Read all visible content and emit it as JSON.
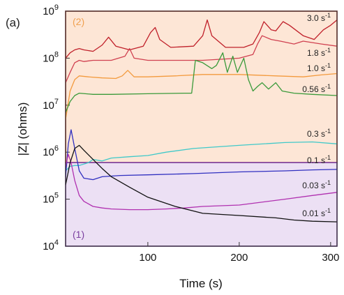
{
  "panel_label": "(a)",
  "chart_data": {
    "type": "line",
    "xlabel": "Time (s)",
    "ylabel": "|Z| (ohms)",
    "xlim": [
      10,
      307
    ],
    "ylim": [
      10000,
      1000000000
    ],
    "yscale": "log",
    "xticks": [
      100,
      200,
      300
    ],
    "yticks": [
      {
        "value": 10000,
        "base": "10",
        "exp": "4"
      },
      {
        "value": 100000,
        "base": "10",
        "exp": "5"
      },
      {
        "value": 1000000,
        "base": "10",
        "exp": "6"
      },
      {
        "value": 10000000,
        "base": "10",
        "exp": "7"
      },
      {
        "value": 100000000,
        "base": "10",
        "exp": "8"
      },
      {
        "value": 1000000000,
        "base": "10",
        "exp": "9"
      }
    ],
    "regions": [
      {
        "label": "(2)",
        "y_range": [
          600000,
          1000000000
        ],
        "fill": "#fde6d6",
        "border": "#c0392b",
        "label_color": "#f0a050"
      },
      {
        "label": "(1)",
        "y_range": [
          10000,
          600000
        ],
        "fill": "#ece0f4",
        "border": "#7b3fa0",
        "label_color": "#7b3fa0"
      }
    ],
    "series": [
      {
        "name": "3.0 s-1",
        "label": "3.0 s",
        "color": "#c0202a",
        "x": [
          10,
          15,
          20,
          25,
          30,
          40,
          50,
          57,
          65,
          80,
          95,
          103,
          108,
          113,
          125,
          150,
          160,
          165,
          170,
          185,
          205,
          215,
          222,
          227,
          235,
          240,
          248,
          255,
          270,
          282,
          292,
          300,
          307
        ],
        "y": [
          100000000,
          130000000,
          150000000,
          160000000,
          150000000,
          140000000,
          190000000,
          280000000,
          180000000,
          150000000,
          180000000,
          350000000,
          450000000,
          250000000,
          170000000,
          180000000,
          300000000,
          650000000,
          300000000,
          170000000,
          170000000,
          200000000,
          350000000,
          600000000,
          400000000,
          380000000,
          600000000,
          500000000,
          300000000,
          250000000,
          400000000,
          500000000,
          650000000
        ]
      },
      {
        "name": "1.8 s-1",
        "label": "1.8 s",
        "color": "#d04050",
        "x": [
          10,
          15,
          20,
          25,
          30,
          40,
          60,
          75,
          80,
          85,
          100,
          140,
          160,
          200,
          215,
          220,
          225,
          235,
          245,
          260,
          270,
          290,
          307
        ],
        "y": [
          30000000,
          50000000,
          80000000,
          90000000,
          85000000,
          90000000,
          90000000,
          110000000,
          160000000,
          100000000,
          90000000,
          90000000,
          90000000,
          100000000,
          120000000,
          200000000,
          300000000,
          250000000,
          230000000,
          200000000,
          230000000,
          200000000,
          180000000
        ]
      },
      {
        "name": "1.0 s-1",
        "label": "1.0 s",
        "color": "#f39a3d",
        "x": [
          10,
          15,
          20,
          25,
          35,
          50,
          65,
          72,
          78,
          85,
          100,
          130,
          160,
          200,
          240,
          270,
          290,
          307
        ],
        "y": [
          5000000,
          20000000,
          35000000,
          42000000,
          40000000,
          38000000,
          37000000,
          42000000,
          55000000,
          40000000,
          40000000,
          42000000,
          45000000,
          45000000,
          42000000,
          40000000,
          44000000,
          47000000
        ]
      },
      {
        "name": "0.56 s-1",
        "label": "0.56 s",
        "color": "#3a9a3a",
        "x": [
          10,
          15,
          20,
          25,
          40,
          60,
          100,
          140,
          148,
          152,
          160,
          170,
          175,
          182,
          187,
          193,
          198,
          205,
          210,
          215,
          220,
          225,
          232,
          240,
          247,
          260,
          280,
          307
        ],
        "y": [
          7000000,
          12000000,
          16000000,
          18000000,
          17000000,
          17000000,
          17500000,
          18000000,
          18000000,
          90000000,
          80000000,
          60000000,
          70000000,
          130000000,
          50000000,
          110000000,
          50000000,
          100000000,
          35000000,
          20000000,
          25000000,
          30000000,
          22000000,
          30000000,
          20000000,
          18000000,
          17000000,
          16000000
        ]
      },
      {
        "name": "0.3 s-1",
        "label": "0.3 s",
        "color": "#3fc9c9",
        "x": [
          10,
          15,
          20,
          25,
          30,
          35,
          40,
          50,
          60,
          80,
          100,
          120,
          150,
          200,
          250,
          280,
          307
        ],
        "y": [
          400000,
          500000,
          520000,
          520000,
          560000,
          600000,
          700000,
          650000,
          750000,
          800000,
          850000,
          1000000,
          1200000,
          1400000,
          1600000,
          1650000,
          1500000
        ]
      },
      {
        "name": "0.1 s-1",
        "label": "0.1 s",
        "color": "#3030c0",
        "x": [
          10,
          13,
          16,
          20,
          25,
          30,
          40,
          50,
          70,
          100,
          150,
          200,
          250,
          280,
          307
        ],
        "y": [
          300000,
          1500000,
          3000000,
          1200000,
          400000,
          280000,
          260000,
          300000,
          320000,
          330000,
          350000,
          380000,
          400000,
          420000,
          430000
        ]
      },
      {
        "name": "0.03 s-1",
        "label": "0.03 s",
        "color": "#b030b0",
        "x": [
          10,
          13,
          16,
          20,
          25,
          30,
          40,
          50,
          60,
          80,
          100,
          120,
          140,
          160,
          200,
          250,
          280,
          307
        ],
        "y": [
          500000,
          900000,
          600000,
          250000,
          120000,
          90000,
          70000,
          65000,
          62000,
          60000,
          60000,
          62000,
          65000,
          70000,
          75000,
          100000,
          120000,
          140000
        ]
      },
      {
        "name": "0.01 s-1",
        "label": "0.01 s",
        "color": "#111111",
        "x": [
          10,
          15,
          20,
          25,
          30,
          40,
          50,
          60,
          80,
          100,
          130,
          160,
          200,
          240,
          260,
          280,
          307
        ],
        "y": [
          200000,
          600000,
          1200000,
          1400000,
          1100000,
          700000,
          450000,
          300000,
          180000,
          110000,
          70000,
          50000,
          45000,
          40000,
          36000,
          34000,
          33000
        ]
      }
    ]
  }
}
